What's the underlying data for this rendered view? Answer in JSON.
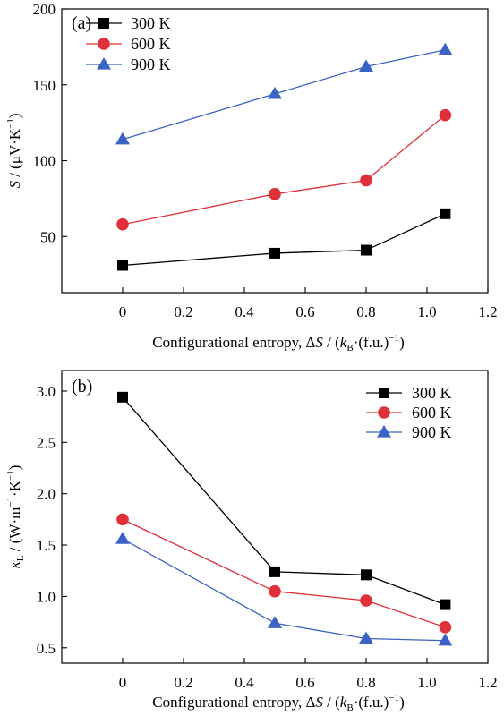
{
  "chart_data": [
    {
      "panel": "(a)",
      "type": "line",
      "ylabel": {
        "main": "S",
        "rest": " / (μV·K",
        "sup": "−1",
        "close": ")"
      },
      "xlabel": {
        "pre": "Configurational entropy, Δ",
        "var": "S",
        "mid": " / (",
        "k": "k",
        "ksub": "B",
        "post": "·(f.u.)",
        "sup": "−1",
        "close": ")"
      },
      "xlim": [
        -0.2,
        1.2
      ],
      "ylim": [
        13,
        200
      ],
      "xticks": [
        0,
        0.2,
        0.4,
        0.6,
        0.8,
        1.0,
        1.2
      ],
      "xtick_labels": [
        "0",
        "0.2",
        "0.4",
        "0.6",
        "0.8",
        "1.0",
        "1.2"
      ],
      "yticks": [
        50,
        100,
        150,
        200
      ],
      "ytick_labels": [
        "50",
        "100",
        "150",
        "200"
      ],
      "x": [
        0,
        0.5,
        0.8,
        1.06
      ],
      "series": [
        {
          "name": "300 K",
          "values": [
            31,
            39,
            41,
            65
          ],
          "color": "#000000",
          "marker": "square"
        },
        {
          "name": "600 K",
          "values": [
            58,
            78,
            87,
            130
          ],
          "color": "#e0303a",
          "marker": "circle"
        },
        {
          "name": "900 K",
          "values": [
            114,
            144,
            162,
            173
          ],
          "color": "#3a63c4",
          "marker": "triangle"
        }
      ],
      "legend": "top-left",
      "grid": false
    },
    {
      "panel": "(b)",
      "type": "line",
      "ylabel": {
        "main": "κ",
        "sub": "L",
        "rest": " / (W·m",
        "sup1": "−1",
        "mid": "·K",
        "sup2": "−1",
        "close": ")"
      },
      "xlabel": {
        "pre": "Configurational entropy, Δ",
        "var": "S",
        "mid": " / (",
        "k": "k",
        "ksub": "B",
        "post": "·(f.u.)",
        "sup": "−1",
        "close": ")"
      },
      "xlim": [
        -0.2,
        1.2
      ],
      "ylim": [
        0.35,
        3.2
      ],
      "xticks": [
        0,
        0.2,
        0.4,
        0.6,
        0.8,
        1.0,
        1.2
      ],
      "xtick_labels": [
        "0",
        "0.2",
        "0.4",
        "0.6",
        "0.8",
        "1.0",
        "1.2"
      ],
      "yticks": [
        0.5,
        1.0,
        1.5,
        2.0,
        2.5,
        3.0
      ],
      "ytick_labels": [
        "0.5",
        "1.0",
        "1.5",
        "2.0",
        "2.5",
        "3.0"
      ],
      "x": [
        0,
        0.5,
        0.8,
        1.06
      ],
      "series": [
        {
          "name": "300 K",
          "values": [
            2.94,
            1.24,
            1.21,
            0.92
          ],
          "color": "#000000",
          "marker": "square"
        },
        {
          "name": "600 K",
          "values": [
            1.75,
            1.05,
            0.96,
            0.7
          ],
          "color": "#e0303a",
          "marker": "circle"
        },
        {
          "name": "900 K",
          "values": [
            1.56,
            0.74,
            0.59,
            0.57
          ],
          "color": "#3a63c4",
          "marker": "triangle"
        }
      ],
      "legend": "top-right",
      "grid": false
    }
  ]
}
